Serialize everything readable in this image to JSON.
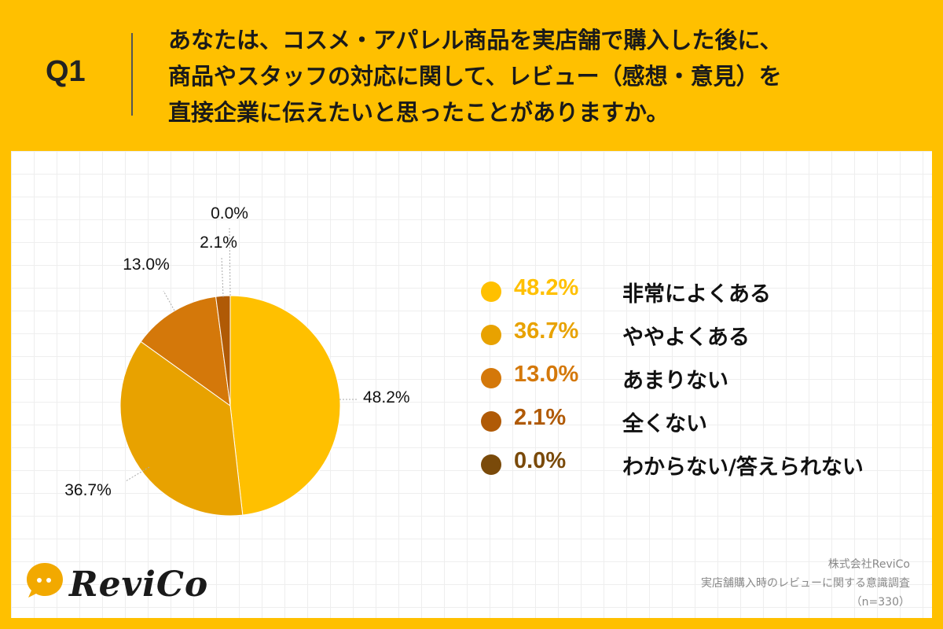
{
  "question": {
    "label": "Q1",
    "lines": [
      "あなたは、コスメ・アパレル商品を実店舗で購入した後に、",
      "商品やスタッフの対応に関して、レビュー（感想・意見）を",
      "直接企業に伝えたいと思ったことがありますか。"
    ]
  },
  "chart_data": {
    "type": "pie",
    "title": "",
    "slices": [
      {
        "label": "非常によくある",
        "value": 48.2,
        "value_label": "48.2%",
        "color": "#FFC000"
      },
      {
        "label": "ややよくある",
        "value": 36.7,
        "value_label": "36.7%",
        "color": "#E8A200"
      },
      {
        "label": "あまりない",
        "value": 13.0,
        "value_label": "13.0%",
        "color": "#D4780A"
      },
      {
        "label": "全くない",
        "value": 2.1,
        "value_label": "2.1%",
        "color": "#B05A06"
      },
      {
        "label": "わからない/答えられない",
        "value": 0.0,
        "value_label": "0.0%",
        "color": "#7A4A0A"
      }
    ]
  },
  "brand": {
    "logo_text": "ReviCo"
  },
  "footer": {
    "company": "株式会社ReviCo",
    "survey": "実店舗購入時のレビューに関する意識調査",
    "sample": "（n=330）"
  }
}
